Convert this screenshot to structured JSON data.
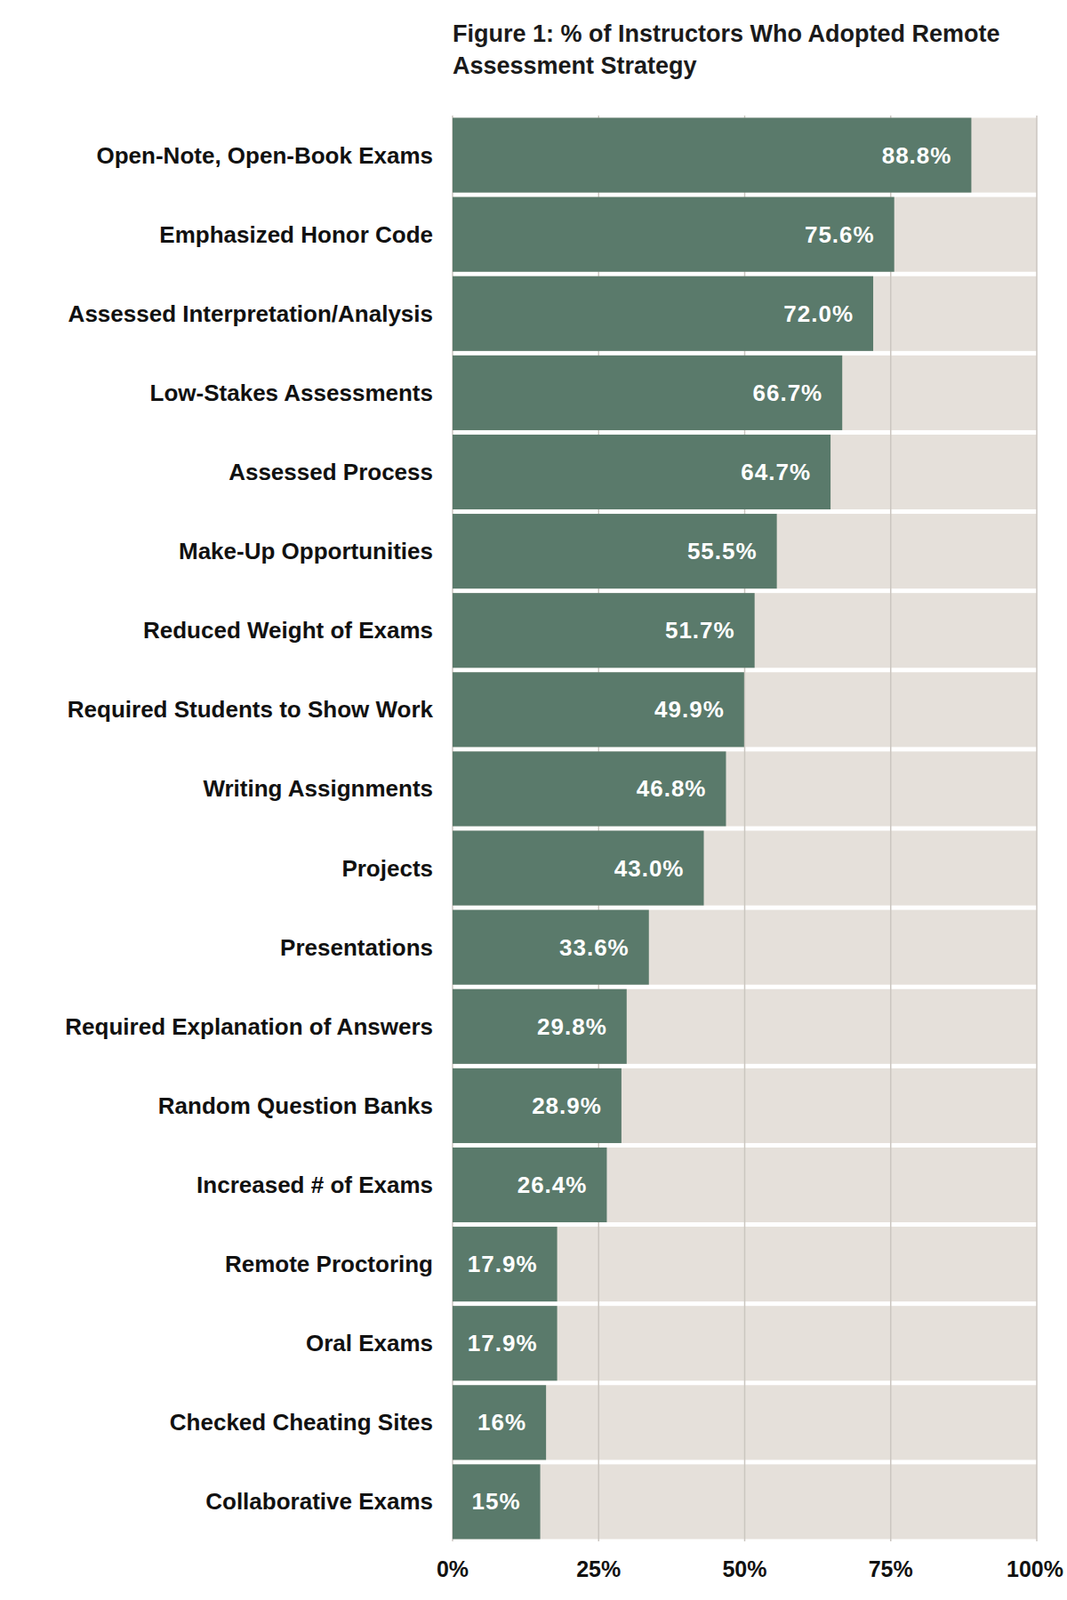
{
  "chart_data": {
    "type": "bar",
    "orientation": "horizontal",
    "title": "Figure 1: % of Instructors Who Adopted Remote Assessment Strategy",
    "categories": [
      "Open-Note, Open-Book Exams",
      "Emphasized Honor Code",
      "Assessed Interpretation/Analysis",
      "Low-Stakes Assessments",
      "Assessed Process",
      "Make-Up Opportunities",
      "Reduced Weight of Exams",
      "Required Students to Show Work",
      "Writing Assignments",
      "Projects",
      "Presentations",
      "Required Explanation of Answers",
      "Random Question Banks",
      "Increased # of Exams",
      "Remote Proctoring",
      "Oral Exams",
      "Checked Cheating Sites",
      "Collaborative Exams"
    ],
    "values": [
      88.8,
      75.6,
      72.0,
      66.7,
      64.7,
      55.5,
      51.7,
      49.9,
      46.8,
      43.0,
      33.6,
      29.8,
      28.9,
      26.4,
      17.9,
      17.9,
      16,
      15
    ],
    "value_labels": [
      "88.8%",
      "75.6%",
      "72.0%",
      "66.7%",
      "64.7%",
      "55.5%",
      "51.7%",
      "49.9%",
      "46.8%",
      "43.0%",
      "33.6%",
      "29.8%",
      "28.9%",
      "26.4%",
      "17.9%",
      "17.9%",
      "16%",
      "15%"
    ],
    "color": "#5a7a6b",
    "xlim": [
      0,
      100
    ],
    "xticks": [
      {
        "value": 0,
        "label": "0%"
      },
      {
        "value": 25,
        "label": "25%"
      },
      {
        "value": 50,
        "label": "50%"
      },
      {
        "value": 75,
        "label": "75%"
      },
      {
        "value": 100,
        "label": "100%"
      }
    ],
    "grid": true,
    "data_labels": true
  }
}
